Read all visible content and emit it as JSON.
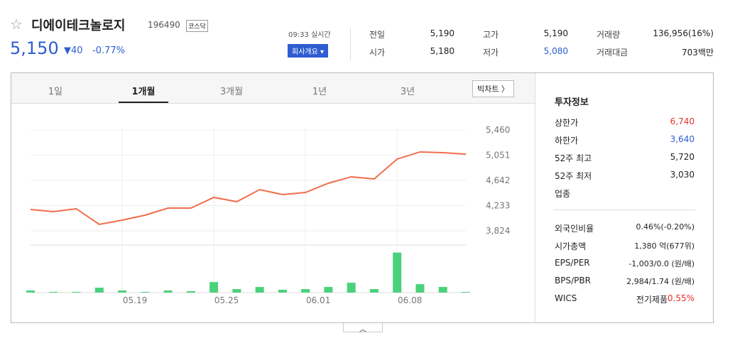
{
  "header": {
    "name": "디에이테크놀로지",
    "code": "196490",
    "market": "코스닥",
    "price": "5,150",
    "change": "40",
    "change_pct": "-0.77%",
    "time": "09:33 실시간",
    "button": "회사개요"
  },
  "quote": [
    {
      "label": "전일",
      "value": "5,190"
    },
    {
      "label": "시가",
      "value": "5,180"
    },
    {
      "label": "고가",
      "value": "5,190"
    },
    {
      "label": "저가",
      "value": "5,080"
    },
    {
      "label": "거래량",
      "value": "136,956(16%)"
    },
    {
      "label": "거래대금",
      "value": "703백만"
    }
  ],
  "tabs": [
    "1일",
    "1개월",
    "3개월",
    "1년",
    "3년"
  ],
  "bigchart": "빅차트",
  "chart": {
    "type": "line",
    "categories": [
      null,
      null,
      null,
      null,
      "05.19",
      null,
      null,
      null,
      "05.25",
      null,
      null,
      null,
      "06.01",
      null,
      null,
      null,
      "06.08",
      null,
      null,
      null
    ],
    "values": [
      4170,
      4135,
      4181,
      3928,
      3997,
      4078,
      4193,
      4193,
      4366,
      4296,
      4492,
      4412,
      4446,
      4596,
      4700,
      4665,
      4988,
      5103,
      5091,
      5068
    ],
    "color": "#f26d4c",
    "ylim": [
      3594,
      5667
    ],
    "yticks": [
      {
        "value": 3824,
        "label": "3,824"
      },
      {
        "value": 4233,
        "label": "4,233"
      },
      {
        "value": 4642,
        "label": "4,642"
      },
      {
        "value": 5051,
        "label": "5,051"
      },
      {
        "value": 5460,
        "label": "5,460"
      }
    ],
    "volume": {
      "color": "#4bd17b",
      "values": [
        75000,
        25000,
        25000,
        175000,
        75000,
        25000,
        75000,
        50000,
        375000,
        125000,
        200000,
        100000,
        125000,
        200000,
        350000,
        125000,
        1425000,
        300000,
        200000,
        25000
      ]
    }
  },
  "invest": {
    "title": "투자정보",
    "rows": [
      {
        "label": "상한가",
        "value": "6,740",
        "color": "#e6302a"
      },
      {
        "label": "하한가",
        "value": "3,640",
        "color": "#2d5dd1"
      },
      {
        "label": "52주 최고",
        "value": "5,720"
      },
      {
        "label": "52주 최저",
        "value": "3,030"
      },
      {
        "label": "업종",
        "value": ""
      }
    ],
    "rows2": [
      {
        "label": "외국인비율",
        "value": "0.46%(-0.20%)"
      },
      {
        "label": "시가총액",
        "value": "1,380 억(677위)"
      },
      {
        "label": "EPS/PER",
        "value": "-1,003/0.0 (원/배)"
      },
      {
        "label": "BPS/PBR",
        "value": "2,984/1.74 (원/배)"
      },
      {
        "label": "WICS",
        "value": "전기제품",
        "extra": "0.55%"
      }
    ]
  }
}
